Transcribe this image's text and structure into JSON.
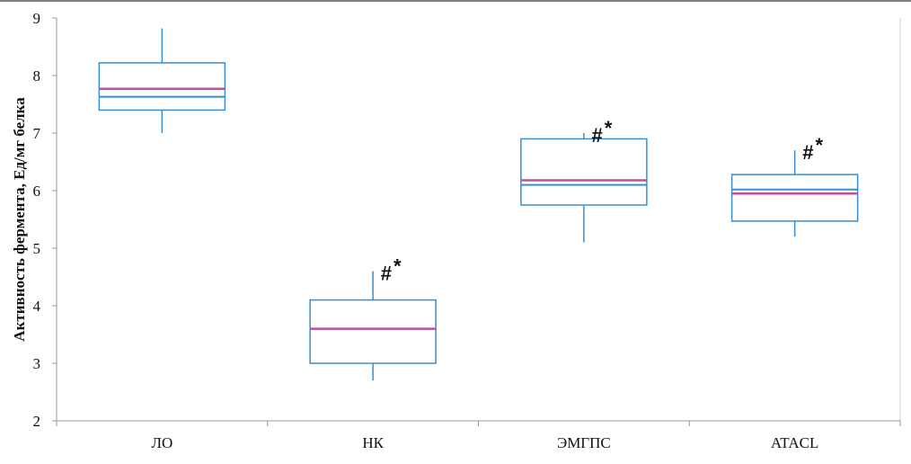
{
  "chart_data": {
    "type": "box",
    "title": "",
    "xlabel": "",
    "ylabel": "Активность фермента, Ед/мг белка",
    "ylim": [
      2,
      9
    ],
    "yticks": [
      "2",
      "3",
      "4",
      "5",
      "6",
      "7",
      "8",
      "9"
    ],
    "grid": false,
    "legend": "none",
    "categories": [
      "ЛО",
      "НК",
      "ЭМГПС",
      "ATACL"
    ],
    "boxes": [
      {
        "category": "ЛО",
        "min": 7.0,
        "q1": 7.4,
        "median": 7.63,
        "mean": 7.77,
        "q3": 8.22,
        "max": 8.82,
        "annotation": ""
      },
      {
        "category": "НК",
        "min": 2.7,
        "q1": 3.0,
        "median": 3.6,
        "mean": 3.6,
        "q3": 4.1,
        "max": 4.6,
        "annotation": "#*"
      },
      {
        "category": "ЭМГПС",
        "min": 5.1,
        "q1": 5.75,
        "median": 6.1,
        "mean": 6.18,
        "q3": 6.9,
        "max": 7.0,
        "annotation": "#*"
      },
      {
        "category": "ATACL",
        "min": 5.2,
        "q1": 5.47,
        "median": 6.02,
        "mean": 5.95,
        "q3": 6.28,
        "max": 6.7,
        "annotation": "#*"
      }
    ],
    "colors": {
      "box": "#3a8fd0",
      "median": "#3a8fd0",
      "mean": "#c04fa0",
      "axis": "#9a9a9a",
      "frame": "#555555"
    }
  }
}
